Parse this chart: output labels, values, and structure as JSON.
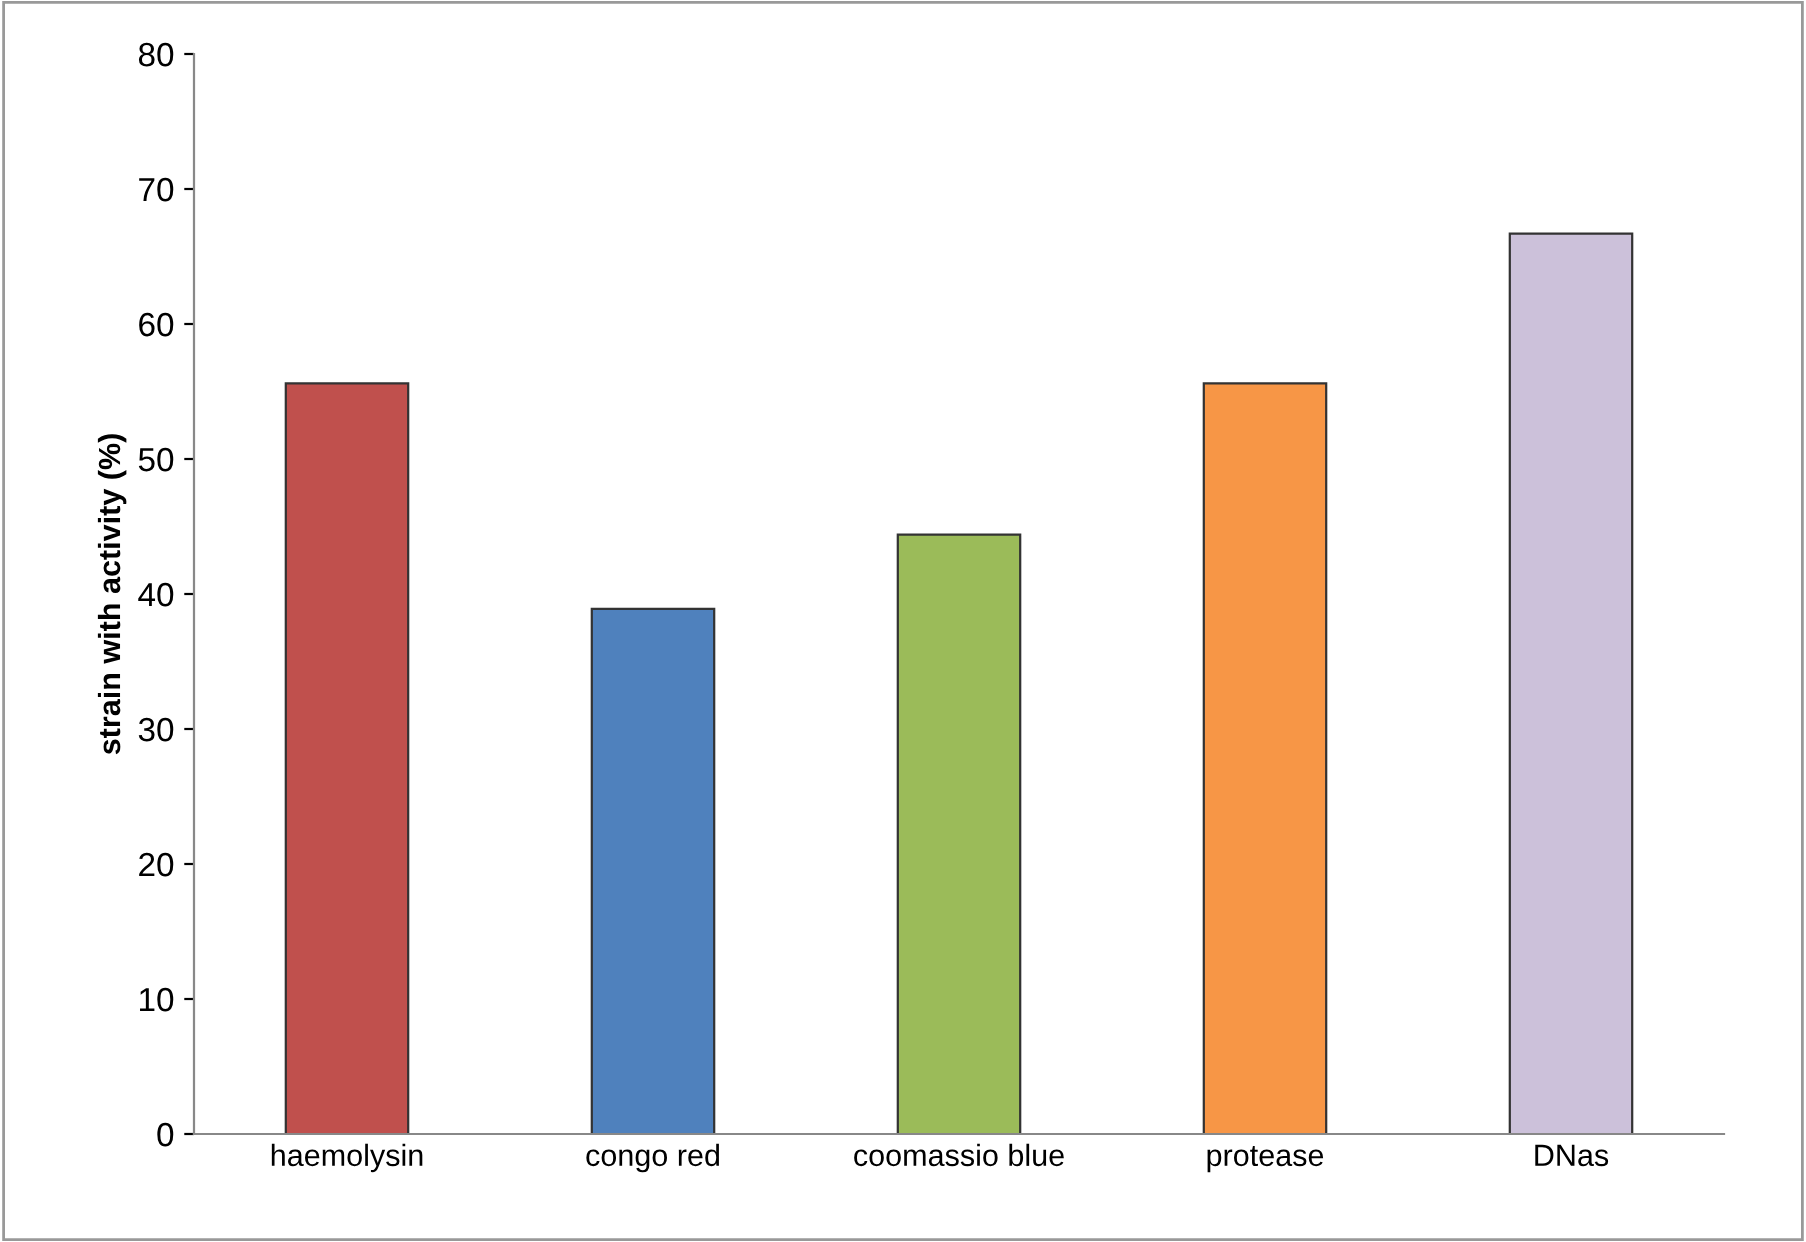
{
  "chart_data": {
    "type": "bar",
    "ylabel": "strain with activity (%)",
    "categories": [
      "haemolysin",
      "congo red",
      "coomassio blue",
      "protease",
      "DNas"
    ],
    "values": [
      55.6,
      38.9,
      44.4,
      55.6,
      66.7
    ],
    "colors": [
      "#c0504d",
      "#4f81bd",
      "#9bbb59",
      "#f79646",
      "#ccc1da"
    ],
    "ylim": [
      0,
      80
    ],
    "yticks": [
      0,
      10,
      20,
      30,
      40,
      50,
      60,
      70,
      80
    ],
    "grid": false,
    "legend": false
  }
}
